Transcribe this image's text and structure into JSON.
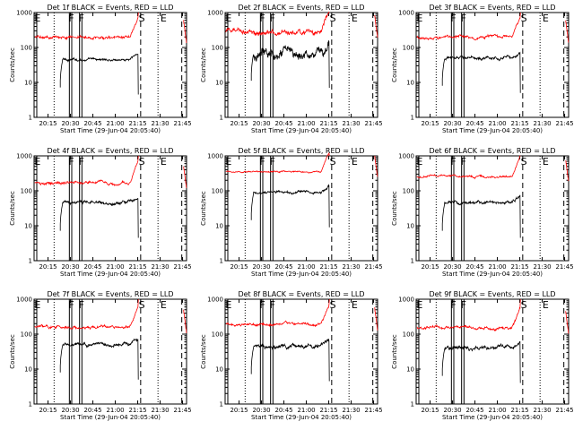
{
  "figure": {
    "time_axis": {
      "ticks": [
        "20:15",
        "20:30",
        "20:45",
        "21:00",
        "21:15",
        "21:30",
        "21:45"
      ],
      "xlabel": "Start Time (29-Jun-04 20:05:40)"
    },
    "y_axis": {
      "ylabel": "Counts/sec",
      "ticks": [
        "1",
        "10",
        "100",
        "1000"
      ],
      "scale": "log",
      "ylim": [
        1,
        1000
      ]
    },
    "flags": {
      "eclipse": "E",
      "saa": "S",
      "f": "F"
    },
    "colors": {
      "events": "#000000",
      "lld": "#ff0000",
      "axes": "#000000"
    }
  },
  "chart_data": [
    {
      "type": "line",
      "title": "Det 1f BLACK = Events, RED = LLD",
      "series": [
        {
          "name": "Events",
          "level": 45,
          "noise": 0.03
        },
        {
          "name": "LLD",
          "level": 200,
          "noise": 0.04
        }
      ]
    },
    {
      "type": "line",
      "title": "Det 2f BLACK = Events, RED = LLD",
      "series": [
        {
          "name": "Events",
          "level": 70,
          "noise": 0.12
        },
        {
          "name": "LLD",
          "level": 280,
          "noise": 0.07
        }
      ]
    },
    {
      "type": "line",
      "title": "Det 3f BLACK = Events, RED = LLD",
      "series": [
        {
          "name": "Events",
          "level": 50,
          "noise": 0.04
        },
        {
          "name": "LLD",
          "level": 200,
          "noise": 0.04
        }
      ]
    },
    {
      "type": "line",
      "title": "Det 4f BLACK = Events, RED = LLD",
      "series": [
        {
          "name": "Events",
          "level": 45,
          "noise": 0.04
        },
        {
          "name": "LLD",
          "level": 170,
          "noise": 0.04
        }
      ]
    },
    {
      "type": "line",
      "title": "Det 5f BLACK = Events, RED = LLD",
      "series": [
        {
          "name": "Events",
          "level": 90,
          "noise": 0.03
        },
        {
          "name": "LLD",
          "level": 350,
          "noise": 0.02
        }
      ]
    },
    {
      "type": "line",
      "title": "Det 6f BLACK = Events, RED = LLD",
      "series": [
        {
          "name": "Events",
          "level": 45,
          "noise": 0.04
        },
        {
          "name": "LLD",
          "level": 260,
          "noise": 0.03
        }
      ]
    },
    {
      "type": "line",
      "title": "Det 7f BLACK = Events, RED = LLD",
      "series": [
        {
          "name": "Events",
          "level": 50,
          "noise": 0.04
        },
        {
          "name": "LLD",
          "level": 160,
          "noise": 0.04
        }
      ]
    },
    {
      "type": "line",
      "title": "Det 8f BLACK = Events, RED = LLD",
      "series": [
        {
          "name": "Events",
          "level": 45,
          "noise": 0.05
        },
        {
          "name": "LLD",
          "level": 190,
          "noise": 0.04
        }
      ]
    },
    {
      "type": "line",
      "title": "Det 9f BLACK = Events, RED = LLD",
      "series": [
        {
          "name": "Events",
          "level": 40,
          "noise": 0.05
        },
        {
          "name": "LLD",
          "level": 150,
          "noise": 0.04
        }
      ]
    }
  ]
}
